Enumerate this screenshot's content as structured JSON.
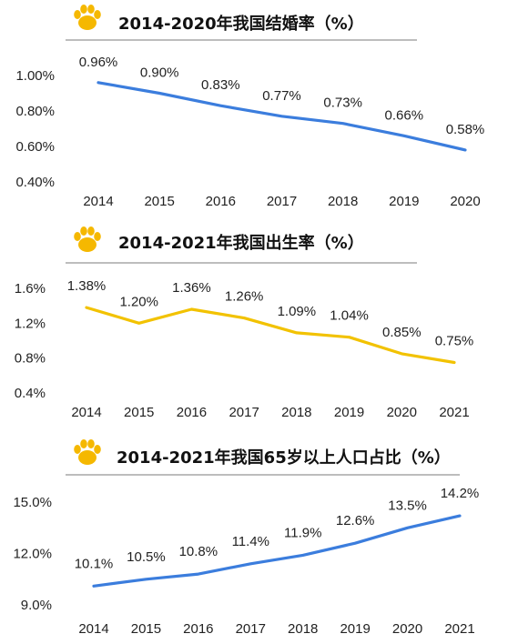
{
  "chart_data": [
    {
      "type": "line",
      "title": "2014-2020年我国结婚率（%）",
      "categories": [
        "2014",
        "2015",
        "2016",
        "2017",
        "2018",
        "2019",
        "2020"
      ],
      "values": [
        0.96,
        0.9,
        0.83,
        0.77,
        0.73,
        0.66,
        0.58
      ],
      "data_labels": [
        "0.96%",
        "0.90%",
        "0.83%",
        "0.77%",
        "0.73%",
        "0.66%",
        "0.58%"
      ],
      "yticks": [
        "1.00%",
        "0.80%",
        "0.60%",
        "0.40%"
      ],
      "ytick_values": [
        1.0,
        0.8,
        0.6,
        0.4
      ],
      "ylim": [
        0.4,
        1.0
      ],
      "color": "#3b7ddd",
      "grid": false
    },
    {
      "type": "line",
      "title": "2014-2021年我国出生率（%）",
      "categories": [
        "2014",
        "2015",
        "2016",
        "2017",
        "2018",
        "2019",
        "2020",
        "2021"
      ],
      "values": [
        1.38,
        1.2,
        1.36,
        1.26,
        1.09,
        1.04,
        0.85,
        0.75
      ],
      "data_labels": [
        "1.38%",
        "1.20%",
        "1.36%",
        "1.26%",
        "1.09%",
        "1.04%",
        "0.85%",
        "0.75%"
      ],
      "yticks": [
        "1.6%",
        "1.2%",
        "0.8%",
        "0.4%"
      ],
      "ytick_values": [
        1.6,
        1.2,
        0.8,
        0.4
      ],
      "ylim": [
        0.4,
        1.6
      ],
      "color": "#f2c200",
      "grid": false
    },
    {
      "type": "line",
      "title": "2014-2021年我国65岁以上人口占比（%）",
      "categories": [
        "2014",
        "2015",
        "2016",
        "2017",
        "2018",
        "2019",
        "2020",
        "2021"
      ],
      "values": [
        10.1,
        10.5,
        10.8,
        11.4,
        11.9,
        12.6,
        13.5,
        14.2
      ],
      "data_labels": [
        "10.1%",
        "10.5%",
        "10.8%",
        "11.4%",
        "11.9%",
        "12.6%",
        "13.5%",
        "14.2%"
      ],
      "yticks": [
        "15.0%",
        "12.0%",
        "9.0%"
      ],
      "ytick_values": [
        15.0,
        12.0,
        9.0
      ],
      "ylim": [
        9.0,
        15.0
      ],
      "color": "#3b7ddd",
      "grid": false
    }
  ],
  "icon": {
    "name": "paw-icon",
    "color": "#f5b800"
  }
}
